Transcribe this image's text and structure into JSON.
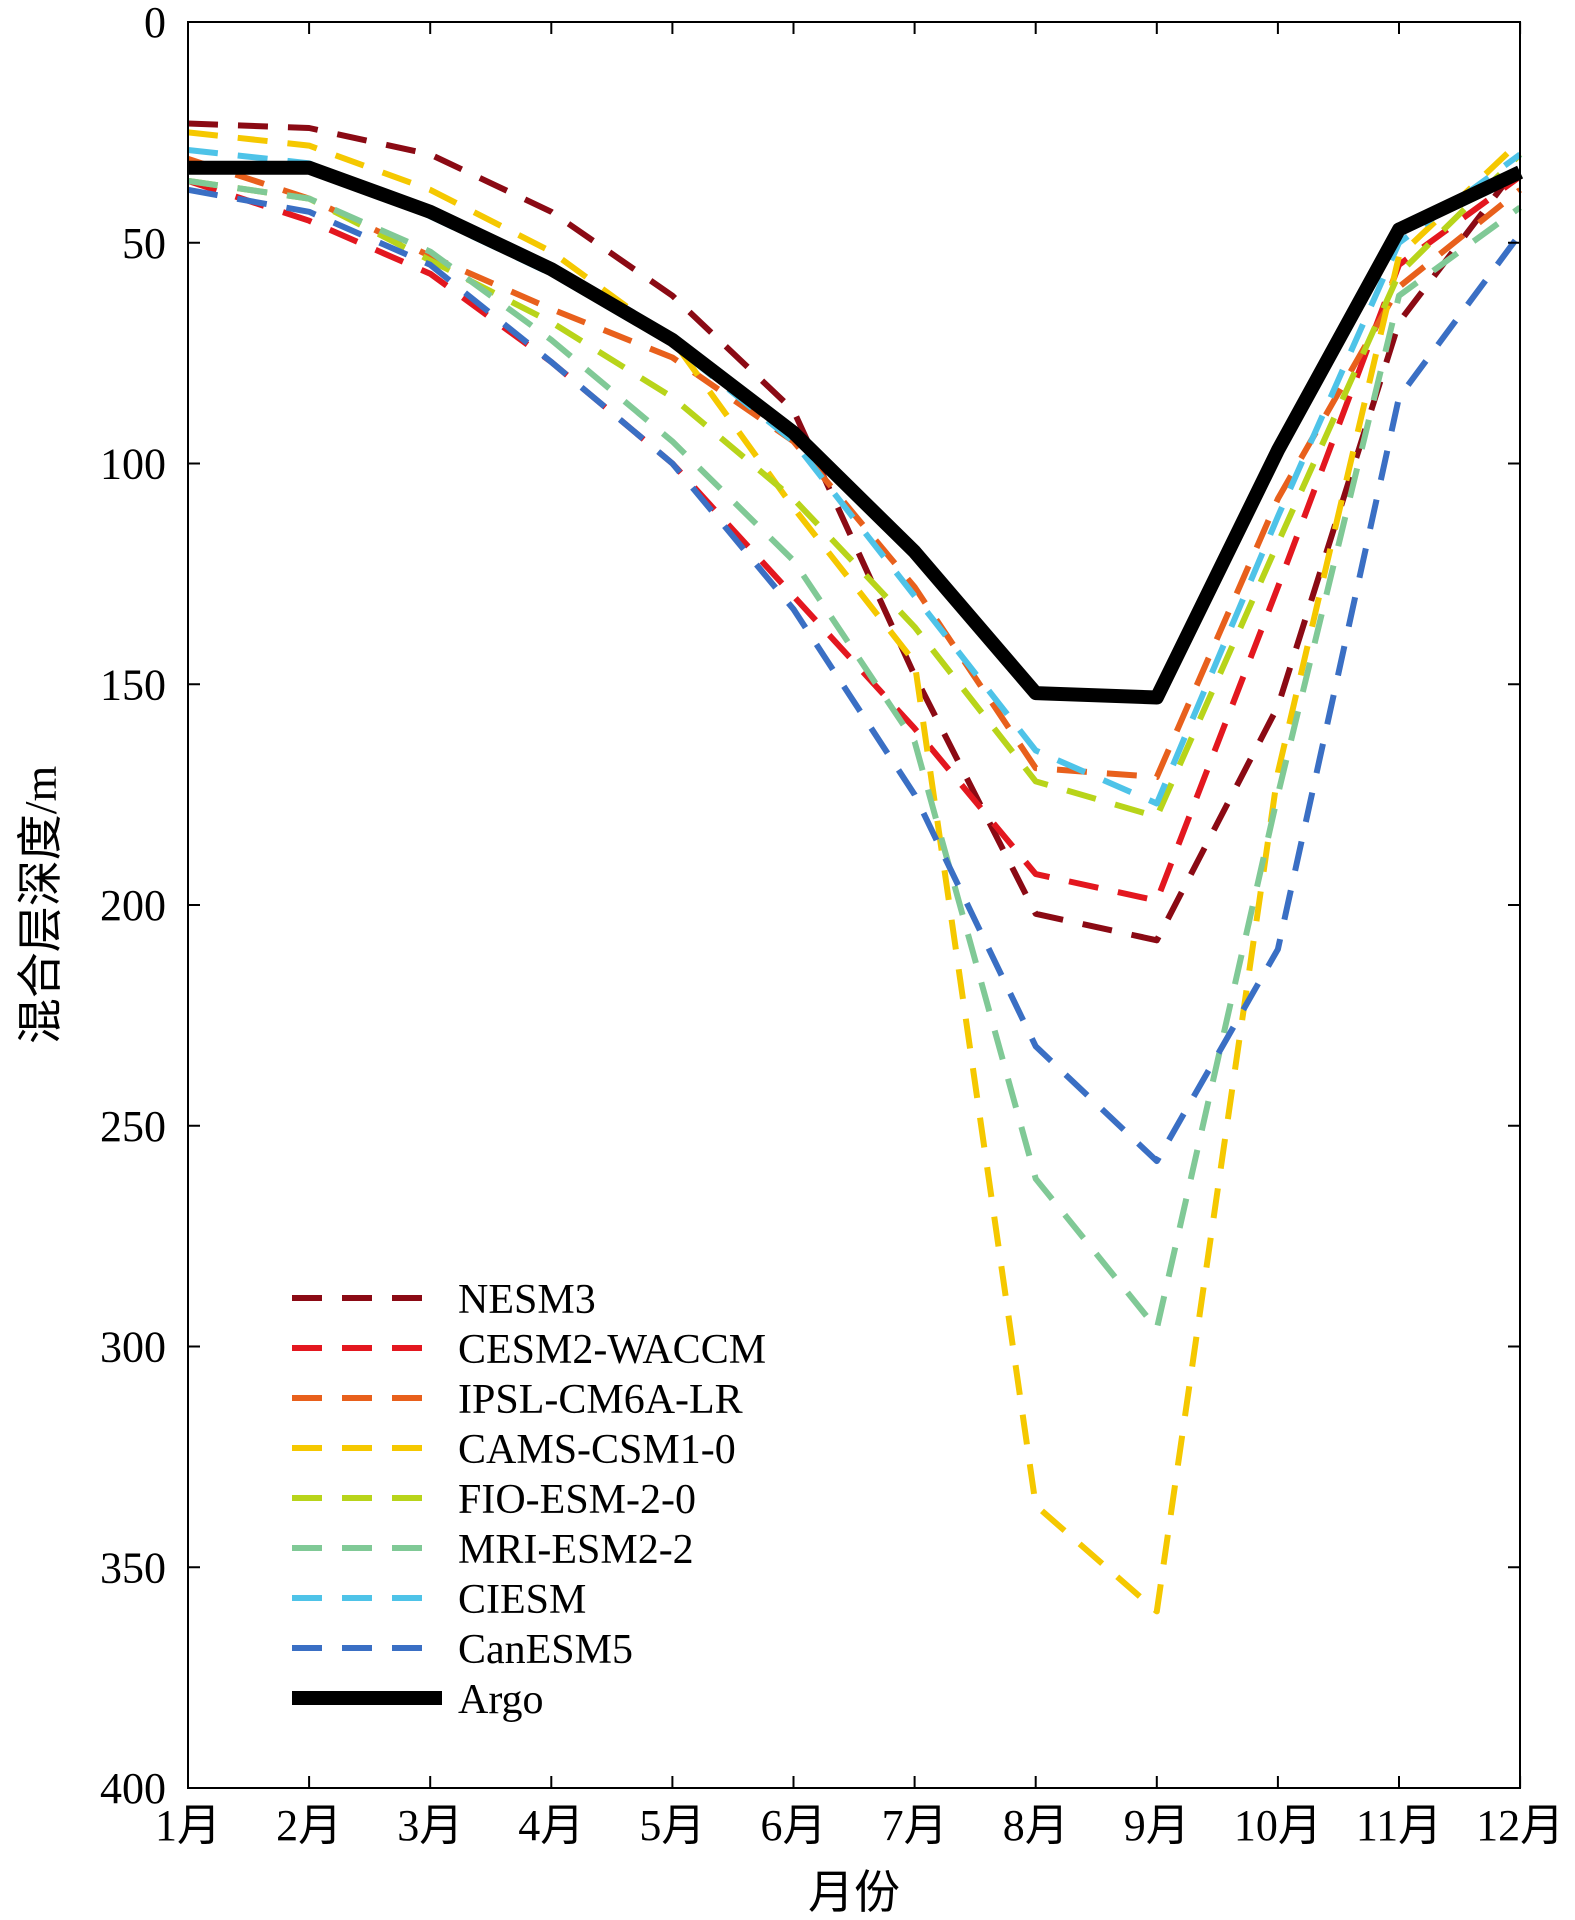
{
  "chart_data": {
    "type": "line",
    "xlabel": "月份",
    "ylabel": "混合层深度/m",
    "categories": [
      "1月",
      "2月",
      "3月",
      "4月",
      "5月",
      "6月",
      "7月",
      "8月",
      "9月",
      "10月",
      "11月",
      "12月"
    ],
    "ylim": [
      0,
      400
    ],
    "y_inverted": true,
    "yticks": [
      0,
      50,
      100,
      150,
      200,
      250,
      300,
      350,
      400
    ],
    "grid": false,
    "legend_position": "bottom-left",
    "series": [
      {
        "name": "NESM3",
        "color": "#8b0a14",
        "dash": true,
        "values": [
          23,
          24,
          30,
          43,
          62,
          88,
          148,
          202,
          208,
          155,
          68,
          32
        ]
      },
      {
        "name": "CESM2-WACCM",
        "color": "#e3171f",
        "dash": true,
        "values": [
          36,
          45,
          57,
          77,
          100,
          130,
          160,
          193,
          199,
          128,
          55,
          35
        ]
      },
      {
        "name": "IPSL-CM6A-LR",
        "color": "#e8601c",
        "dash": true,
        "values": [
          31,
          40,
          53,
          65,
          76,
          95,
          128,
          169,
          171,
          108,
          60,
          38
        ]
      },
      {
        "name": "CAMS-CSM1-0",
        "color": "#f5c800",
        "dash": true,
        "values": [
          25,
          28,
          38,
          52,
          72,
          110,
          145,
          336,
          360,
          170,
          53,
          27
        ]
      },
      {
        "name": "FIO-ESM-2-0",
        "color": "#b8d41a",
        "dash": true,
        "values": [
          36,
          40,
          54,
          68,
          85,
          108,
          137,
          172,
          180,
          118,
          57,
          30
        ]
      },
      {
        "name": "MRI-ESM2-2",
        "color": "#80c996",
        "dash": true,
        "values": [
          36,
          40,
          52,
          72,
          95,
          122,
          163,
          262,
          296,
          175,
          62,
          42
        ]
      },
      {
        "name": "CIESM",
        "color": "#4ec3e8",
        "dash": true,
        "values": [
          29,
          32,
          44,
          57,
          73,
          95,
          130,
          165,
          177,
          112,
          50,
          30
        ]
      },
      {
        "name": "CanESM5",
        "color": "#3a6fc4",
        "dash": true,
        "values": [
          38,
          43,
          55,
          77,
          100,
          133,
          175,
          232,
          258,
          210,
          85,
          48
        ]
      },
      {
        "name": "Argo",
        "color": "#000000",
        "dash": false,
        "values": [
          33,
          33,
          43,
          56,
          72,
          93,
          120,
          152,
          153,
          97,
          47,
          34
        ]
      }
    ]
  }
}
